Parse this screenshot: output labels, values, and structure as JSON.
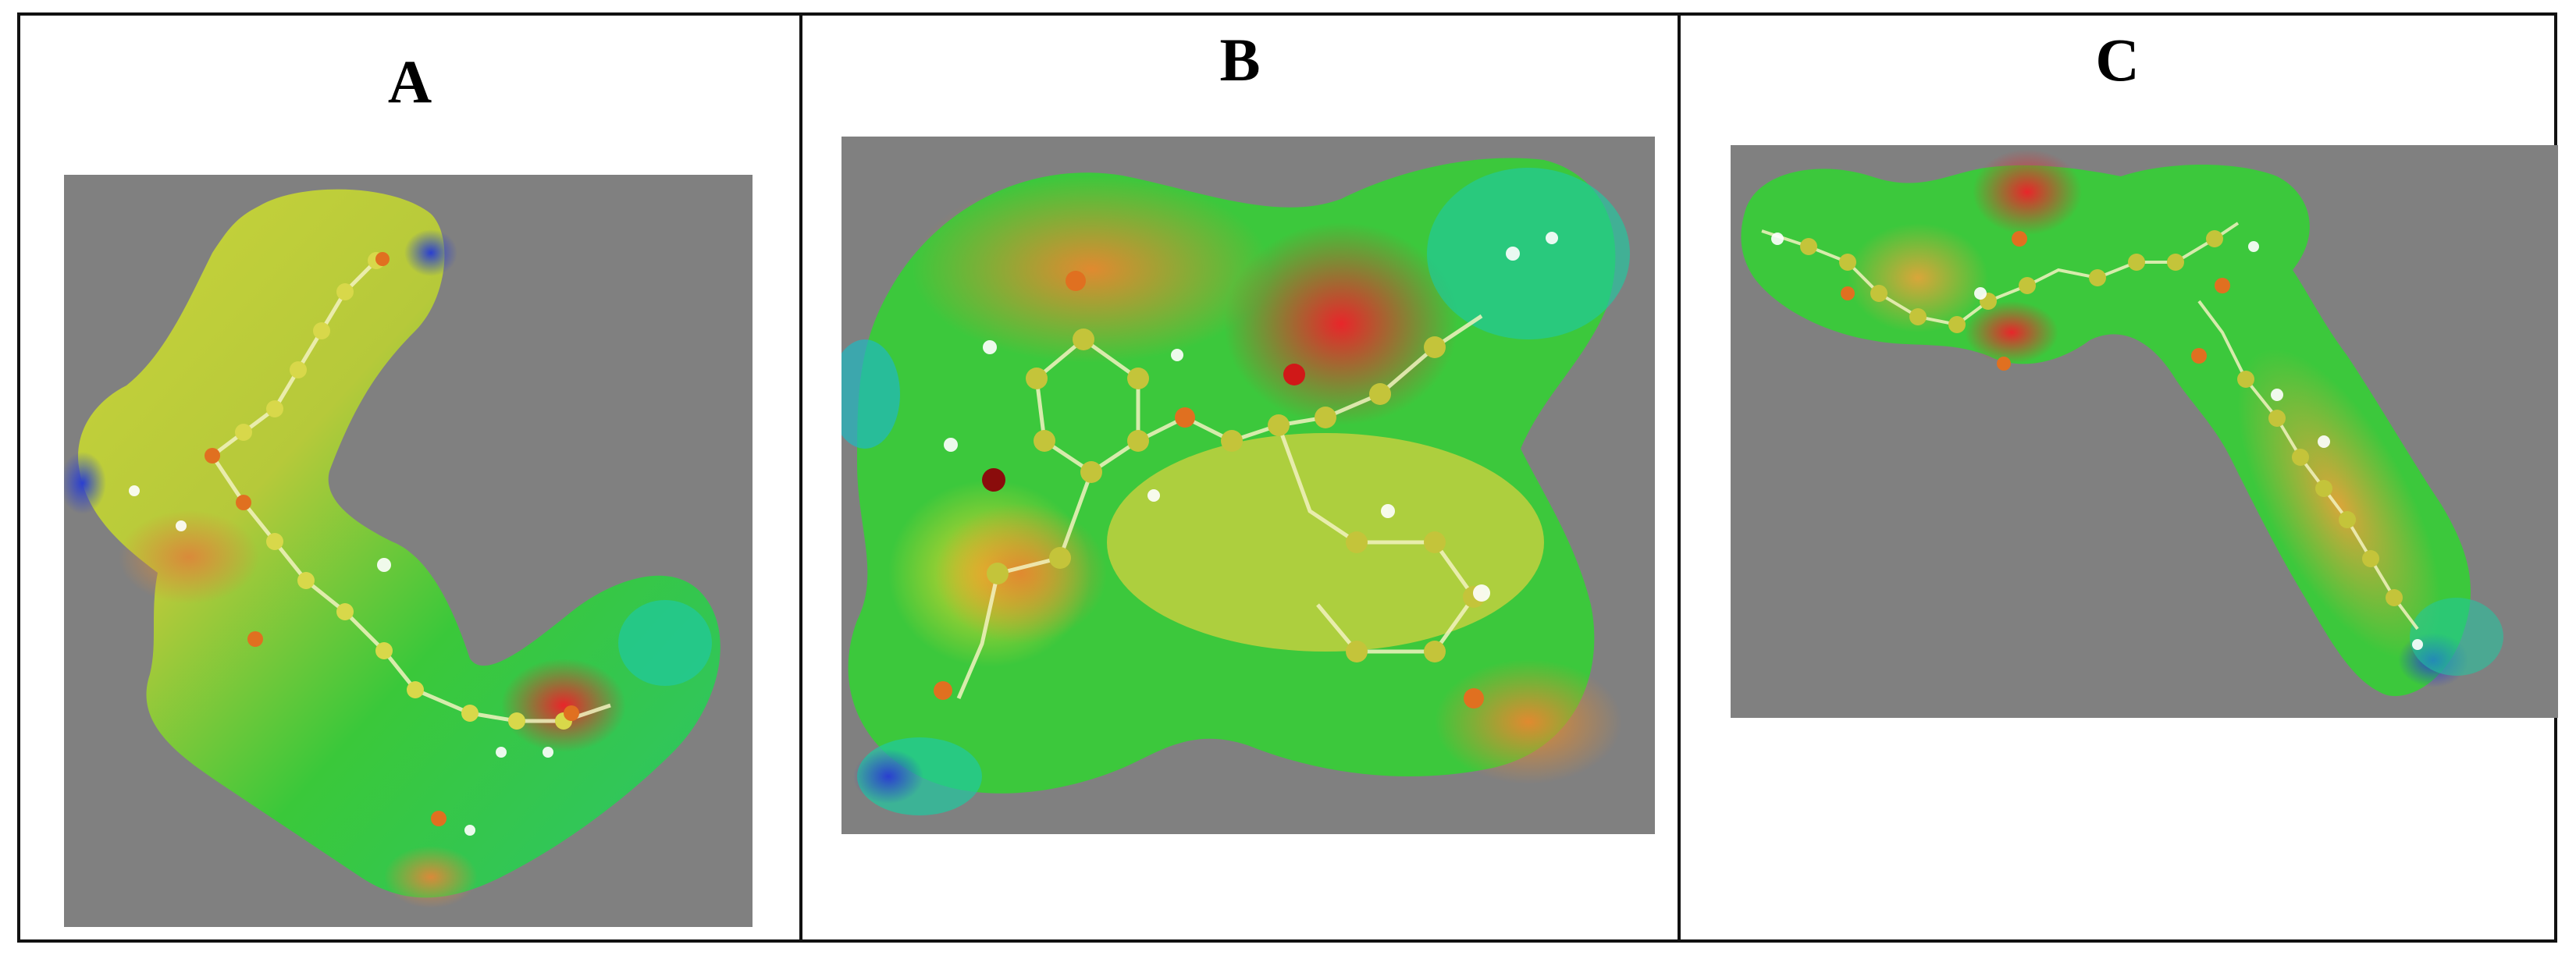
{
  "panels": [
    {
      "id": "a",
      "label": "A"
    },
    {
      "id": "b",
      "label": "B"
    },
    {
      "id": "c",
      "label": "C"
    }
  ],
  "colors": {
    "viewport_background": "#808080",
    "frame_border": "#111111",
    "surface_low": "#2a3fd0",
    "surface_mid_cyan": "#1fc9a0",
    "surface_green": "#22c82e",
    "surface_yellow": "#d4d428",
    "surface_orange": "#e3892a",
    "surface_high": "#e3282a"
  }
}
